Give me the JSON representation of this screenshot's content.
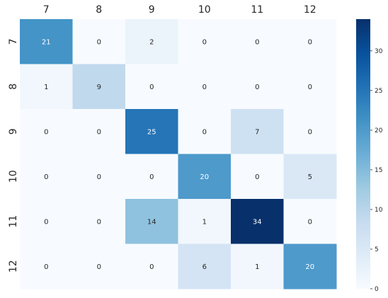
{
  "chart_data": {
    "type": "heatmap",
    "title": "",
    "xlabel": "",
    "ylabel": "",
    "x_categories": [
      "7",
      "8",
      "9",
      "10",
      "11",
      "12"
    ],
    "y_categories": [
      "7",
      "8",
      "9",
      "10",
      "11",
      "12"
    ],
    "values": [
      [
        21,
        0,
        2,
        0,
        0,
        0
      ],
      [
        1,
        9,
        0,
        0,
        0,
        0
      ],
      [
        0,
        0,
        25,
        0,
        7,
        0
      ],
      [
        0,
        0,
        0,
        20,
        0,
        5
      ],
      [
        0,
        0,
        14,
        1,
        34,
        0
      ],
      [
        0,
        0,
        0,
        6,
        1,
        20
      ]
    ],
    "x_axis_position": "top",
    "colormap": "Blues",
    "colorbar": {
      "range": [
        0,
        34
      ],
      "ticks": [
        "0",
        "5",
        "10",
        "15",
        "20",
        "25",
        "30"
      ]
    },
    "annotate_cells": true,
    "grid": false
  }
}
